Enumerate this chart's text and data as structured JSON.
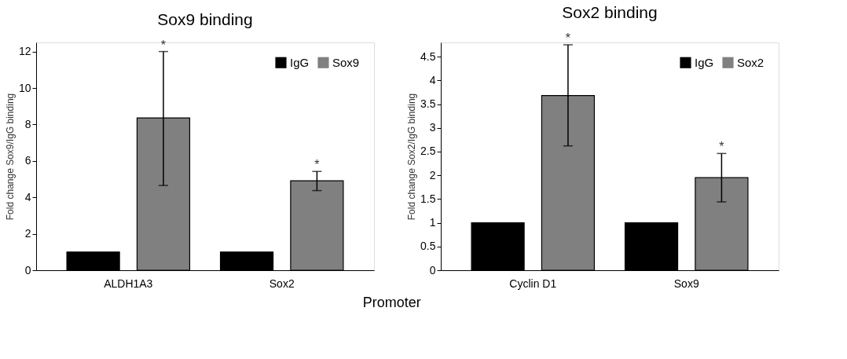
{
  "chart_data": [
    {
      "type": "bar",
      "title": "Sox9 binding",
      "xlabel": "Promoter",
      "ylabel": "Fold change Sox9/IgG binding",
      "categories": [
        "ALDH1A3",
        "Sox2"
      ],
      "series": [
        {
          "name": "IgG",
          "color": "#000000",
          "values": [
            1,
            1
          ]
        },
        {
          "name": "Sox9",
          "color": "#808080",
          "values": [
            8.36,
            4.91
          ],
          "errors": [
            [
              4.65,
              12.0
            ],
            [
              4.37,
              5.42
            ]
          ]
        }
      ],
      "ylim": [
        0,
        12.5
      ],
      "yticks": [
        0,
        2,
        4,
        6,
        8,
        10,
        12
      ],
      "grid": false,
      "legend": "top right",
      "annotations": [
        "*",
        "*"
      ]
    },
    {
      "type": "bar",
      "title": "Sox2 binding",
      "ylabel": "Fold change Sox2/IgG binding",
      "categories": [
        "Cyclin D1",
        "Sox9"
      ],
      "series": [
        {
          "name": "IgG",
          "color": "#000000",
          "values": [
            1,
            1
          ]
        },
        {
          "name": "Sox2",
          "color": "#808080",
          "values": [
            3.68,
            1.95
          ],
          "errors": [
            [
              2.62,
              4.75
            ],
            [
              1.44,
              2.46
            ]
          ]
        }
      ],
      "ylim": [
        0,
        4.8
      ],
      "yticks": [
        0,
        0.5,
        1,
        1.5,
        2,
        2.5,
        3,
        3.5,
        4,
        4.5
      ],
      "grid": false,
      "legend": "top right",
      "annotations": [
        "*",
        "*"
      ]
    }
  ]
}
